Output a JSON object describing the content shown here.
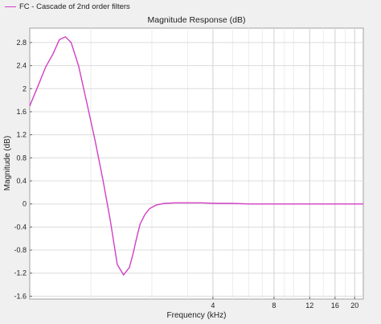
{
  "legend": {
    "label": "FC - Cascade of 2nd order filters",
    "color": "#d23fc6"
  },
  "chart_data": {
    "type": "line",
    "title": "Magnitude Response (dB)",
    "xlabel": "Frequency (kHz)",
    "ylabel": "Magnitude (dB)",
    "x_scale": "log",
    "xlim": [
      0.5,
      22.05
    ],
    "ylim": [
      -1.65,
      3.05
    ],
    "grid": true,
    "x_ticks": [
      4,
      8,
      12,
      16,
      20
    ],
    "y_ticks": [
      -1.6,
      -1.2,
      -0.8,
      -0.4,
      0,
      0.4,
      0.8,
      1.2,
      1.6,
      2,
      2.4,
      2.8
    ],
    "series": [
      {
        "name": "FC - Cascade of 2nd order filters",
        "color": "#d23fc6",
        "x": [
          0.5,
          0.55,
          0.6,
          0.65,
          0.7,
          0.75,
          0.8,
          0.87,
          0.95,
          1.05,
          1.15,
          1.25,
          1.35,
          1.45,
          1.55,
          1.62,
          1.68,
          1.75,
          1.85,
          1.95,
          2.1,
          2.3,
          2.6,
          3.0,
          3.5,
          4.2,
          5.0,
          6.0,
          8.0,
          10.0,
          14.0,
          18.0,
          22.05
        ],
        "y": [
          1.7,
          2.05,
          2.38,
          2.6,
          2.85,
          2.9,
          2.8,
          2.4,
          1.8,
          1.1,
          0.4,
          -0.3,
          -1.05,
          -1.23,
          -1.1,
          -0.85,
          -0.6,
          -0.35,
          -0.18,
          -0.08,
          -0.02,
          0.01,
          0.02,
          0.02,
          0.02,
          0.01,
          0.01,
          0.0,
          0.0,
          0.0,
          0.0,
          0.0,
          0.0
        ]
      }
    ]
  }
}
